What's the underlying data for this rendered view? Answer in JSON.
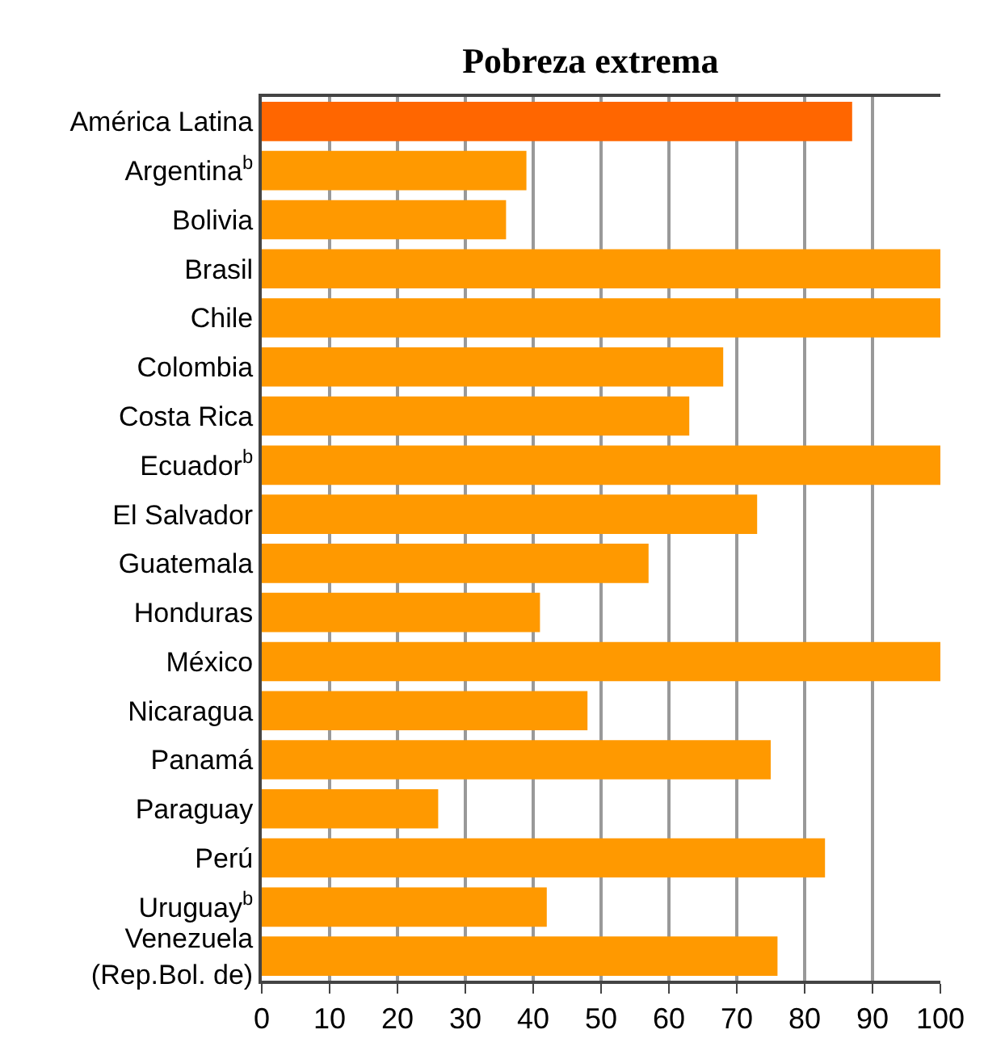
{
  "chart_data": {
    "type": "bar",
    "orientation": "horizontal",
    "title": "Pobreza extrema",
    "categories": [
      "América Latina",
      "Argentina$^{b}$",
      "Bolivia",
      "Brasil",
      "Chile",
      "Colombia",
      "Costa Rica",
      "Ecuador$^{b}$",
      "El Salvador",
      "Guatemala",
      "Honduras",
      "México",
      "Nicaragua",
      "Panamá",
      "Paraguay",
      "Perú",
      "Uruguay$^{b}$",
      "Venezuela\n(Rep.Bol. de)"
    ],
    "values": [
      87,
      39,
      36,
      100,
      100,
      68,
      63,
      100,
      73,
      57,
      41,
      100,
      48,
      75,
      26,
      83,
      42,
      76
    ],
    "colors": [
      "#ff6600",
      "#ff9900",
      "#ff9900",
      "#ff9900",
      "#ff9900",
      "#ff9900",
      "#ff9900",
      "#ff9900",
      "#ff9900",
      "#ff9900",
      "#ff9900",
      "#ff9900",
      "#ff9900",
      "#ff9900",
      "#ff9900",
      "#ff9900",
      "#ff9900",
      "#ff9900"
    ],
    "xlim": [
      0,
      100
    ],
    "xticks": [
      0,
      10,
      20,
      30,
      40,
      50,
      60,
      70,
      80,
      90,
      100
    ],
    "grid": "x"
  }
}
